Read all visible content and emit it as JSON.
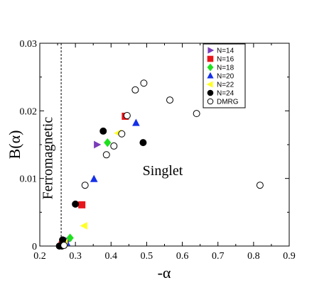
{
  "chart_data": {
    "type": "scatter",
    "title": "",
    "xlabel": "-α",
    "ylabel": "B(α)",
    "xlim": [
      0.2,
      0.9
    ],
    "ylim": [
      0,
      0.03
    ],
    "xticks": [
      "0.2",
      "0.3",
      "0.4",
      "0.5",
      "0.6",
      "0.7",
      "0.8",
      "0.9"
    ],
    "yticks": [
      "0",
      "0.01",
      "0.02",
      "0.03"
    ],
    "grid": false,
    "legend_position": "top-right",
    "reference_line": {
      "x": 0.26,
      "style": "dashed"
    },
    "annotations": [
      {
        "text": "Ferromagnetic",
        "x": 0.235,
        "y": 0.013,
        "rotation": -90
      },
      {
        "text": "Singlet",
        "x": 0.545,
        "y": 0.0105
      }
    ],
    "series": [
      {
        "name": "N=14",
        "marker": "triangle-right",
        "color": "#7a3db8",
        "filled": true,
        "points": [
          [
            0.278,
            0.0008
          ],
          [
            0.36,
            0.015
          ]
        ]
      },
      {
        "name": "N=16",
        "marker": "square",
        "color": "#e8161b",
        "filled": true,
        "points": [
          [
            0.263,
            0.0002
          ],
          [
            0.318,
            0.0061
          ],
          [
            0.44,
            0.0192
          ]
        ]
      },
      {
        "name": "N=18",
        "marker": "diamond",
        "color": "#1fe01f",
        "filled": true,
        "points": [
          [
            0.268,
            0.0003
          ],
          [
            0.285,
            0.0012
          ],
          [
            0.39,
            0.0153
          ]
        ]
      },
      {
        "name": "N=20",
        "marker": "triangle-up",
        "color": "#1530e8",
        "filled": true,
        "points": [
          [
            0.265,
            0.0002
          ],
          [
            0.275,
            0.0005
          ],
          [
            0.352,
            0.0099
          ],
          [
            0.47,
            0.0182
          ]
        ]
      },
      {
        "name": "N=22",
        "marker": "triangle-left",
        "color": "#ffff24",
        "filled": true,
        "points": [
          [
            0.27,
            0.0005
          ],
          [
            0.325,
            0.003
          ],
          [
            0.42,
            0.0167
          ]
        ]
      },
      {
        "name": "N=24",
        "marker": "circle",
        "color": "#000000",
        "filled": true,
        "points": [
          [
            0.255,
            0.0
          ],
          [
            0.262,
            0.0
          ],
          [
            0.264,
            0.0009
          ],
          [
            0.3,
            0.0062
          ],
          [
            0.378,
            0.017
          ],
          [
            0.49,
            0.0153
          ]
        ]
      },
      {
        "name": "DMRG",
        "marker": "circle",
        "color": "#000000",
        "filled": false,
        "points": [
          [
            0.268,
            0.0001
          ],
          [
            0.327,
            0.009
          ],
          [
            0.387,
            0.0135
          ],
          [
            0.408,
            0.0148
          ],
          [
            0.43,
            0.0166
          ],
          [
            0.445,
            0.0193
          ],
          [
            0.468,
            0.0231
          ],
          [
            0.492,
            0.0241
          ],
          [
            0.565,
            0.0216
          ],
          [
            0.64,
            0.0196
          ],
          [
            0.818,
            0.009
          ]
        ]
      }
    ]
  }
}
